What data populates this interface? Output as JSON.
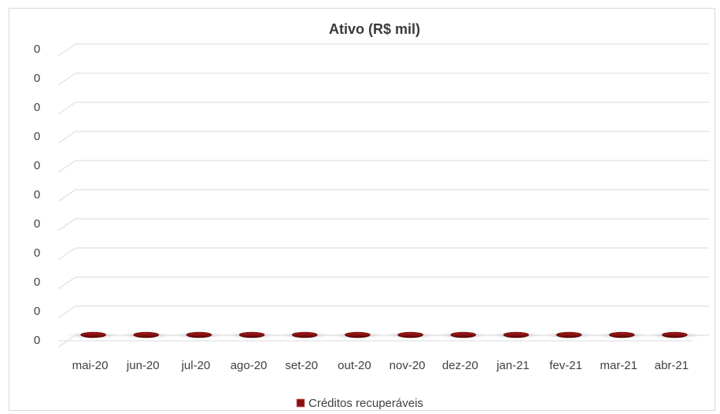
{
  "chart_data": {
    "type": "bar",
    "style": "3d-cylinder",
    "title": "Ativo (R$ mil)",
    "categories": [
      "mai-20",
      "jun-20",
      "jul-20",
      "ago-20",
      "set-20",
      "out-20",
      "nov-20",
      "dez-20",
      "jan-21",
      "fev-21",
      "mar-21",
      "abr-21"
    ],
    "series": [
      {
        "name": "Créditos recuperáveis",
        "values": [
          0,
          0,
          0,
          0,
          0,
          0,
          0,
          0,
          0,
          0,
          0,
          0
        ]
      }
    ],
    "y_tick_labels": [
      "0",
      "0",
      "0",
      "0",
      "0",
      "0",
      "0",
      "0",
      "0",
      "0",
      "0"
    ],
    "grid": true,
    "legend": "bottom",
    "colors": {
      "series": "#8b0d0d",
      "grid": "#d9d9d9",
      "text": "#404040"
    }
  }
}
